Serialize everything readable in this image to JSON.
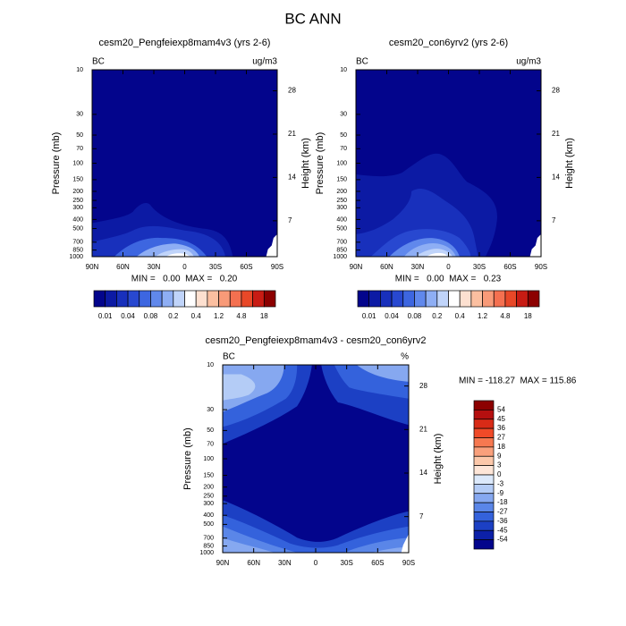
{
  "title": "BC ANN",
  "chart_data": [
    {
      "type": "contour",
      "title": "cesm20_Pengfeiexp8mam4v3 (yrs 2-6)",
      "left_label": "BC",
      "right_label": "ug/m3",
      "ylabel": "Pressure (mb)",
      "y2label": "Height (km)",
      "xlim": [
        90,
        -90
      ],
      "xticks": [
        {
          "value": 90,
          "label": "90N"
        },
        {
          "value": 60,
          "label": "60N"
        },
        {
          "value": 30,
          "label": "30N"
        },
        0,
        {
          "value": -30,
          "label": "30S"
        },
        {
          "value": -60,
          "label": "60S"
        },
        {
          "value": -90,
          "label": "90S"
        }
      ],
      "ylim": [
        1000,
        10
      ],
      "ylog": true,
      "yticks": [
        10,
        30,
        50,
        70,
        100,
        150,
        200,
        250,
        300,
        400,
        500,
        700,
        850,
        1000
      ],
      "y2lim": [
        1.2,
        31.4
      ],
      "y2ticks": [
        7,
        14,
        21,
        28
      ],
      "stats": "MIN =   0.00  MAX =   0.20",
      "colorbar": {
        "orientation": "horizontal",
        "colors": [
          "#03058c",
          "#0c1aa4",
          "#1830bc",
          "#2848d0",
          "#3d66e0",
          "#6088ec",
          "#8eaef4",
          "#c0d4fa",
          "#ffffff",
          "#fde0d0",
          "#fbbfa0",
          "#f89a78",
          "#f47050",
          "#e84828",
          "#c81c14",
          "#8c0000"
        ],
        "ticks": [
          0.01,
          0.04,
          0.08,
          0.2,
          0.4,
          1.2,
          4.8,
          18
        ]
      }
    },
    {
      "type": "contour",
      "title": "cesm20_con6yrv2 (yrs 2-6)",
      "left_label": "BC",
      "right_label": "ug/m3",
      "ylabel": "Pressure (mb)",
      "y2label": "Height (km)",
      "xlim": [
        90,
        -90
      ],
      "xticks": [
        {
          "value": 90,
          "label": "90N"
        },
        {
          "value": 60,
          "label": "60N"
        },
        {
          "value": 30,
          "label": "30N"
        },
        0,
        {
          "value": -30,
          "label": "30S"
        },
        {
          "value": -60,
          "label": "60S"
        },
        {
          "value": -90,
          "label": "90S"
        }
      ],
      "ylim": [
        1000,
        10
      ],
      "ylog": true,
      "yticks": [
        10,
        30,
        50,
        70,
        100,
        150,
        200,
        250,
        300,
        400,
        500,
        700,
        850,
        1000
      ],
      "y2lim": [
        1.2,
        31.4
      ],
      "y2ticks": [
        7,
        14,
        21,
        28
      ],
      "stats": "MIN =   0.00  MAX =   0.23",
      "colorbar": {
        "orientation": "horizontal",
        "colors": [
          "#03058c",
          "#0c1aa4",
          "#1830bc",
          "#2848d0",
          "#3d66e0",
          "#6088ec",
          "#8eaef4",
          "#c0d4fa",
          "#ffffff",
          "#fde0d0",
          "#fbbfa0",
          "#f89a78",
          "#f47050",
          "#e84828",
          "#c81c14",
          "#8c0000"
        ],
        "ticks": [
          0.01,
          0.04,
          0.08,
          0.2,
          0.4,
          1.2,
          4.8,
          18
        ]
      }
    },
    {
      "type": "contour",
      "title": "cesm20_Pengfeiexp8mam4v3 - cesm20_con6yrv2",
      "left_label": "BC",
      "right_label": "%",
      "ylabel": "Pressure (mb)",
      "y2label": "Height (km)",
      "xlim": [
        90,
        -90
      ],
      "xticks": [
        {
          "value": 90,
          "label": "90N"
        },
        {
          "value": 60,
          "label": "60N"
        },
        {
          "value": 30,
          "label": "30N"
        },
        0,
        {
          "value": -30,
          "label": "30S"
        },
        {
          "value": -60,
          "label": "60S"
        },
        {
          "value": -90,
          "label": "90S"
        }
      ],
      "ylim": [
        1000,
        10
      ],
      "ylog": true,
      "yticks": [
        10,
        30,
        50,
        70,
        100,
        150,
        200,
        250,
        300,
        400,
        500,
        700,
        850,
        1000
      ],
      "y2lim": [
        1.2,
        31.4
      ],
      "y2ticks": [
        7,
        14,
        21,
        28
      ],
      "stats": "MIN = -118.27  MAX = 115.86",
      "colorbar": {
        "orientation": "vertical",
        "colors": [
          "#8c0000",
          "#b50f0f",
          "#d82b17",
          "#f04a28",
          "#f67850",
          "#f9a07c",
          "#fcc8aa",
          "#fee6d8",
          "#dce9fb",
          "#b4ccf6",
          "#86a8f0",
          "#5a86e8",
          "#3462dc",
          "#1c40c4",
          "#0c20a8",
          "#03058c"
        ],
        "ticks": [
          54,
          45,
          36,
          27,
          18,
          9,
          3,
          0,
          -3,
          -9,
          -18,
          -27,
          -36,
          -45,
          -54
        ]
      }
    }
  ]
}
